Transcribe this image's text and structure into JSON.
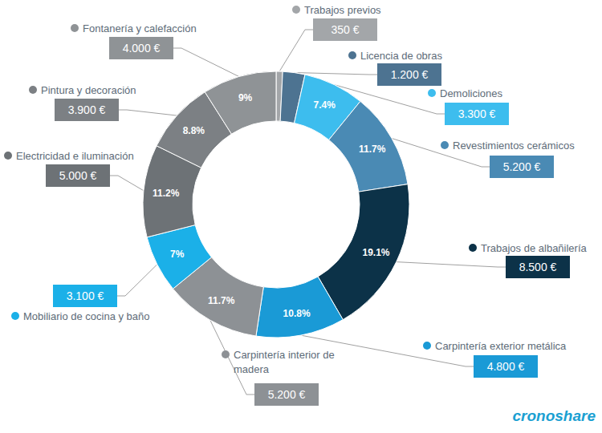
{
  "chart_data": {
    "type": "donut",
    "categories": [
      "Trabajos previos",
      "Licencia de obras",
      "Demoliciones",
      "Revestimientos cerámicos",
      "Trabajos de albañilería",
      "Carpintería exterior metálica",
      "Carpintería interior de madera",
      "Mobiliario de cocina y baño",
      "Electricidad e iluminación",
      "Pintura y decoración",
      "Fontanería y calefacción"
    ],
    "values": [
      350,
      1200,
      3300,
      5200,
      8500,
      4800,
      5200,
      3100,
      5000,
      3900,
      4000
    ],
    "value_labels": [
      "350 €",
      "1.200 €",
      "3.300 €",
      "5.200 €",
      "8.500 €",
      "4.800 €",
      "5.200 €",
      "3.100 €",
      "5.000 €",
      "3.900 €",
      "4.000 €"
    ],
    "percent_labels": [
      null,
      null,
      "7.4%",
      "11.7%",
      "19.1%",
      "10.8%",
      "11.7%",
      "7%",
      "11.2%",
      "8.8%",
      "9%"
    ],
    "colors": [
      "#a3a6a9",
      "#4d7391",
      "#3dbdee",
      "#4a8ab4",
      "#0c3248",
      "#1a9ad6",
      "#8d9195",
      "#1bb0e8",
      "#6d7276",
      "#7c8084",
      "#8f9396"
    ],
    "data_labels": true,
    "annotation": "cronoshare"
  }
}
